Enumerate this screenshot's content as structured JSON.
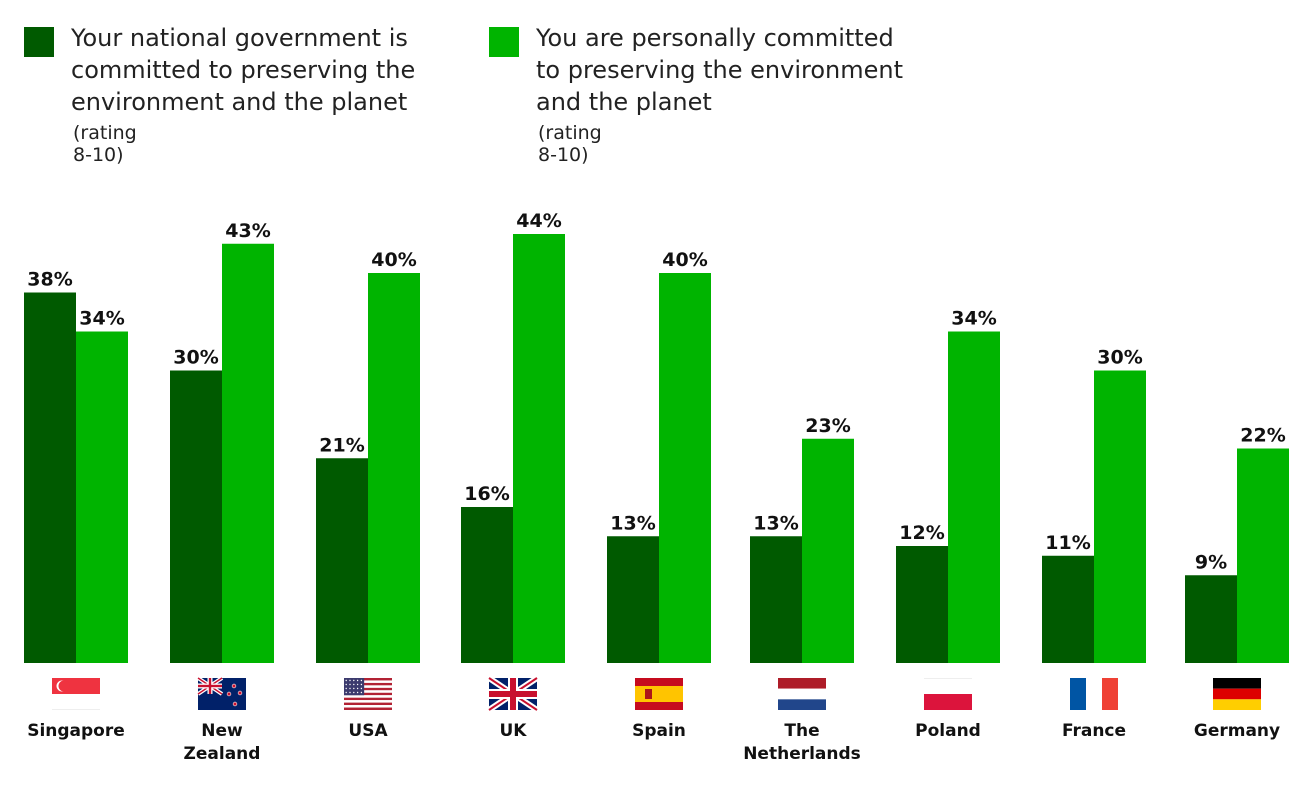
{
  "legend": {
    "items": [
      {
        "series": "Your national government is committed to preserving the environment and the planet",
        "lines": [
          "Your national government is",
          "committed to preserving the",
          "environment and the planet"
        ],
        "note": "(rating 8-10)",
        "color": "#005a00"
      },
      {
        "series": "You are personally committed to preserving the environment and the planet",
        "lines": [
          "You are personally committed",
          "to preserving the environment",
          "and the planet"
        ],
        "note": "(rating 8-10)",
        "color": "#00b400"
      }
    ]
  },
  "chart_data": {
    "type": "bar",
    "categories": [
      "Singapore",
      "New Zealand",
      "USA",
      "UK",
      "Spain",
      "The Netherlands",
      "Poland",
      "France",
      "Germany"
    ],
    "category_lines": [
      [
        "Singapore"
      ],
      [
        "New",
        "Zealand"
      ],
      [
        "USA"
      ],
      [
        "UK"
      ],
      [
        "Spain"
      ],
      [
        "The",
        "Netherlands"
      ],
      [
        "Poland"
      ],
      [
        "France"
      ],
      [
        "Germany"
      ]
    ],
    "series": [
      {
        "name": "Your national government is committed to preserving the environment and the planet",
        "values": [
          38,
          30,
          21,
          16,
          13,
          13,
          12,
          11,
          9
        ],
        "labels": [
          "38%",
          "30%",
          "21%",
          "16%",
          "13%",
          "13%",
          "12%",
          "11%",
          "9%"
        ],
        "color": "#005a00"
      },
      {
        "name": "You are personally committed to preserving the environment and the planet",
        "values": [
          34,
          43,
          40,
          44,
          40,
          23,
          34,
          30,
          22
        ],
        "labels": [
          "34%",
          "43%",
          "40%",
          "44%",
          "40%",
          "23%",
          "34%",
          "30%",
          "22%"
        ],
        "color": "#00b400"
      }
    ],
    "ylim": [
      0,
      44
    ],
    "grid": false,
    "legend_position": "top-left",
    "flag_icons": [
      "singapore-flag-icon",
      "new-zealand-flag-icon",
      "usa-flag-icon",
      "uk-flag-icon",
      "spain-flag-icon",
      "netherlands-flag-icon",
      "poland-flag-icon",
      "france-flag-icon",
      "germany-flag-icon"
    ]
  }
}
